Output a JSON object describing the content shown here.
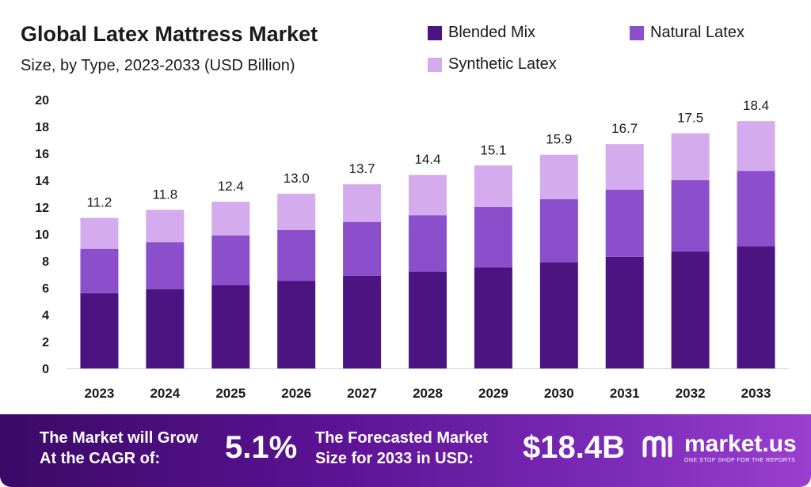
{
  "title": "Global Latex Mattress Market",
  "subtitle": "Size, by Type, 2023-2033 (USD Billion)",
  "colors": {
    "blended_mix": "#4b1480",
    "natural_latex": "#8b4fcc",
    "synthetic_latex": "#d4abec"
  },
  "chart_data": {
    "type": "bar",
    "stacked": true,
    "categories": [
      "2023",
      "2024",
      "2025",
      "2026",
      "2027",
      "2028",
      "2029",
      "2030",
      "2031",
      "2032",
      "2033"
    ],
    "series": [
      {
        "name": "Blended Mix",
        "values": [
          5.6,
          5.9,
          6.2,
          6.5,
          6.9,
          7.2,
          7.5,
          7.9,
          8.3,
          8.7,
          9.1
        ]
      },
      {
        "name": "Natural Latex",
        "values": [
          3.3,
          3.5,
          3.7,
          3.8,
          4.0,
          4.2,
          4.5,
          4.7,
          5.0,
          5.3,
          5.6
        ]
      },
      {
        "name": "Synthetic Latex",
        "values": [
          2.3,
          2.4,
          2.5,
          2.7,
          2.8,
          3.0,
          3.1,
          3.3,
          3.4,
          3.5,
          3.7
        ]
      }
    ],
    "totals": [
      "11.2",
      "11.8",
      "12.4",
      "13.0",
      "13.7",
      "14.4",
      "15.1",
      "15.9",
      "16.7",
      "17.5",
      "18.4"
    ],
    "yticks": [
      0,
      2,
      4,
      6,
      8,
      10,
      12,
      14,
      16,
      18,
      20
    ],
    "ylim": [
      0,
      20
    ],
    "grid": false,
    "legend": "top-right"
  },
  "footer": {
    "cagr_label_line1": "The Market will Grow",
    "cagr_label_line2": "At the CAGR of:",
    "cagr_value": "5.1%",
    "forecast_label_line1": "The Forecasted Market",
    "forecast_label_line2": "Size for 2033 in USD:",
    "forecast_value": "$18.4B"
  },
  "logo": {
    "name": "market.us",
    "tagline": "ONE STOP SHOP FOR THE REPORTS"
  }
}
